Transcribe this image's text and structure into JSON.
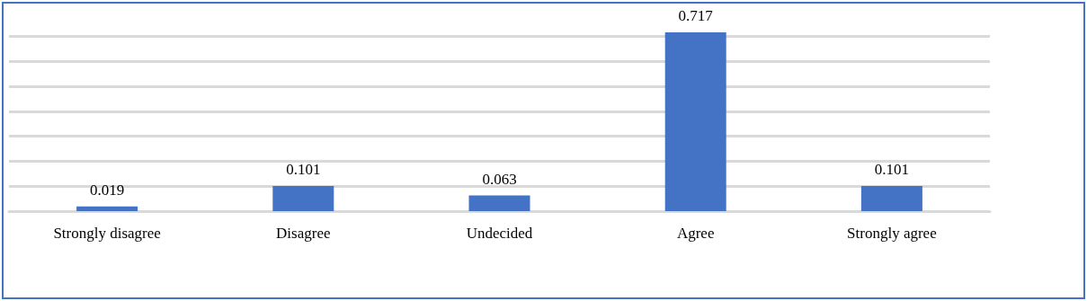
{
  "chart_data": {
    "type": "bar",
    "categories": [
      "Strongly disagree",
      "Disagree",
      "Undecided",
      "Agree",
      "Strongly agree"
    ],
    "values": [
      0.019,
      0.101,
      0.063,
      0.717,
      0.101
    ],
    "color": "#4472c4",
    "yticks": [
      {
        "value": 0,
        "label": null
      },
      {
        "value": 0.1,
        "label": null
      },
      {
        "value": 0.2,
        "label": null
      },
      {
        "value": 0.3,
        "label": null
      },
      {
        "value": 0.4,
        "label": null
      },
      {
        "value": 0.5,
        "label": null
      },
      {
        "value": 0.6,
        "label": null
      },
      {
        "value": 0.7,
        "label": null
      }
    ],
    "tick_labels": "x",
    "grid": "y",
    "data_labels": true
  }
}
